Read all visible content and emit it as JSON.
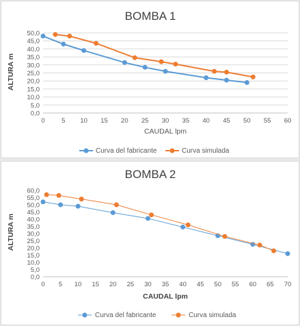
{
  "chart_data": [
    {
      "type": "line",
      "title": "BOMBA 1",
      "xlabel": "CAUDAL lpm",
      "ylabel": "ALTURA m",
      "xlim": [
        0,
        60
      ],
      "ylim": [
        0,
        50
      ],
      "xticks": [
        "0",
        "5",
        "10",
        "15",
        "20",
        "25",
        "30",
        "35",
        "40",
        "45",
        "50",
        "55",
        "60"
      ],
      "yticks": [
        "0,0",
        "5,0",
        "10,0",
        "15,0",
        "20,0",
        "25,0",
        "30,0",
        "35,0",
        "40,0",
        "45,0",
        "50,0"
      ],
      "grid": true,
      "legend_position": "bottom",
      "series": [
        {
          "name": "Curva del fabricante",
          "color": "#5b9bd5",
          "x": [
            0,
            5,
            10,
            20,
            25,
            30,
            40,
            45,
            50
          ],
          "y": [
            48,
            43,
            39,
            31.5,
            28.5,
            26,
            22,
            20.5,
            19
          ]
        },
        {
          "name": "Curva simulada",
          "color": "#ed7d31",
          "x": [
            3,
            6.5,
            13,
            22.5,
            29,
            32.5,
            42,
            45,
            51.5
          ],
          "y": [
            49,
            48,
            43.5,
            34.5,
            32,
            30.5,
            26,
            25.5,
            22.5
          ]
        }
      ]
    },
    {
      "type": "line",
      "title": "BOMBA 2",
      "xlabel": "CAUDAL lpm",
      "ylabel": "ALTURA m",
      "xlim": [
        0,
        70
      ],
      "ylim": [
        0,
        60
      ],
      "xticks": [
        "0",
        "5",
        "10",
        "15",
        "20",
        "25",
        "30",
        "35",
        "40",
        "45",
        "50",
        "55",
        "60",
        "65",
        "70"
      ],
      "yticks": [
        "0,0",
        "5,0",
        "10,0",
        "15,0",
        "20,0",
        "25,0",
        "30,0",
        "35,0",
        "40,0",
        "45,0",
        "50,0",
        "55,0",
        "60,0"
      ],
      "grid": false,
      "legend_position": "bottom",
      "series": [
        {
          "name": "Curva del fabricante",
          "color": "#5b9bd5",
          "x": [
            0,
            5,
            10,
            20,
            30,
            40,
            50,
            60,
            70
          ],
          "y": [
            52,
            50,
            49,
            44.5,
            40.5,
            34.5,
            28.5,
            22.5,
            16
          ]
        },
        {
          "name": "Curva simulada",
          "color": "#ed7d31",
          "x": [
            1,
            4.5,
            11,
            21,
            31,
            41.5,
            52,
            62,
            66
          ],
          "y": [
            57,
            56.5,
            54,
            50,
            43,
            36,
            28,
            22,
            18
          ]
        }
      ]
    }
  ]
}
